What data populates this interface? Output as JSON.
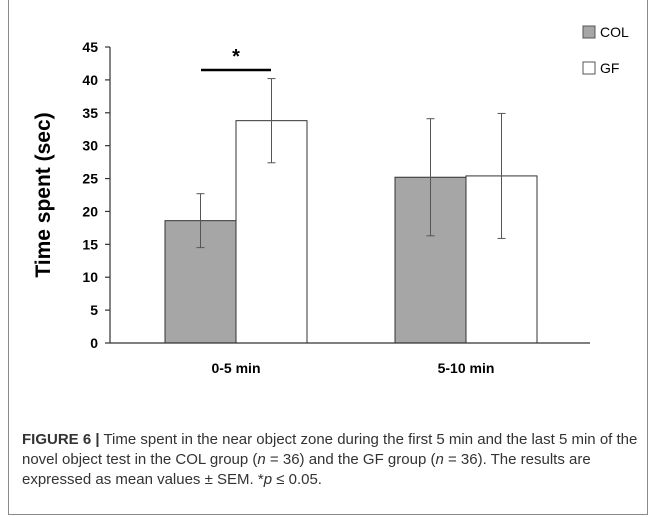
{
  "figure": {
    "label": "FIGURE 6 |",
    "caption_parts": {
      "p1": " Time spent in the near object zone during the first 5 min and the last 5 min of the novel object test in the COL group (",
      "n1": "n",
      "p2": " = 36) and the GF group (",
      "n2": "n",
      "p3": " = 36). The results are expressed as mean values ± SEM. *",
      "pvar": "p",
      "p4": " ≤ 0.05."
    }
  },
  "chart_data": {
    "type": "bar",
    "categories": [
      "0-5 min",
      "5-10 min"
    ],
    "series": [
      {
        "name": "COL",
        "values": [
          18.6,
          25.2
        ],
        "errors": [
          4.1,
          8.9
        ],
        "color": "#a6a6a6"
      },
      {
        "name": "GF",
        "values": [
          33.8,
          25.4
        ],
        "errors": [
          6.4,
          9.5
        ],
        "color": "#ffffff"
      }
    ],
    "ylabel": "Time spent (sec)",
    "ylim": [
      0,
      45
    ],
    "yticks": [
      0,
      5,
      10,
      15,
      20,
      25,
      30,
      35,
      40,
      45
    ],
    "legend_position": "top-right",
    "grid": false,
    "significance": {
      "category": "0-5 min",
      "label": "*"
    }
  }
}
